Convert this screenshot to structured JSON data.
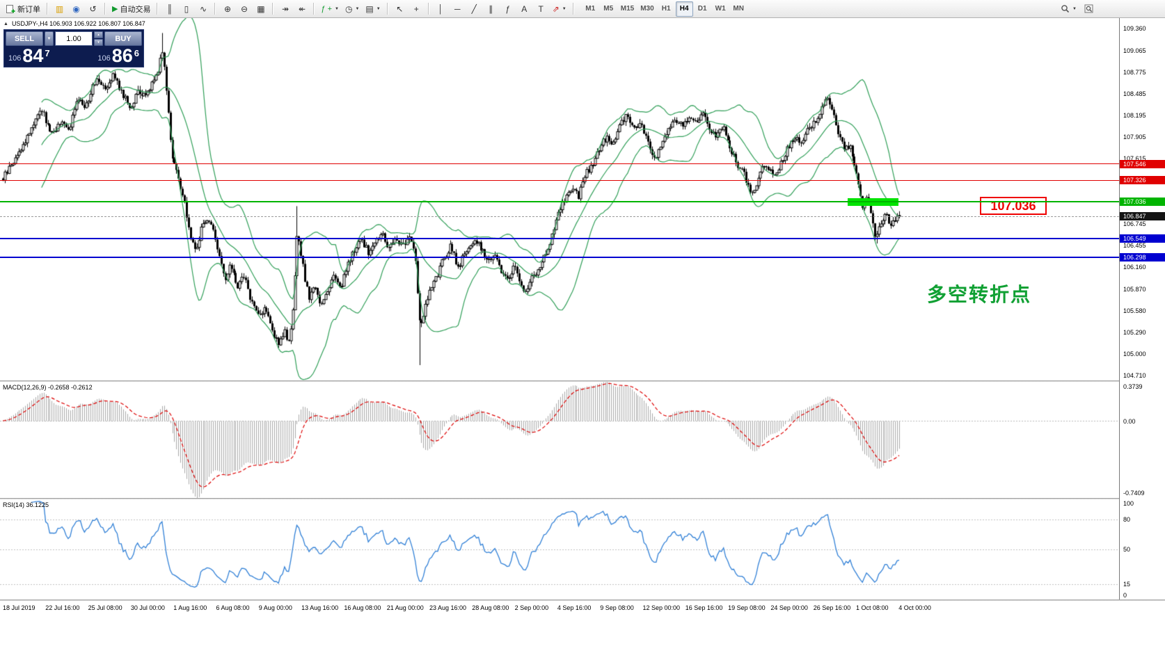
{
  "toolbar": {
    "new_order_label": "新订单",
    "autotrading_label": "自动交易",
    "timeframes": [
      "M1",
      "M5",
      "M15",
      "M30",
      "H1",
      "H4",
      "D1",
      "W1",
      "MN"
    ],
    "active_timeframe": "H4",
    "icons": {
      "charts": "▥",
      "profile": "◉",
      "refresh": "↺",
      "play": "▶",
      "bar_chart": "║",
      "candle_chart": "▯",
      "line_chart": "∿",
      "zoom_in": "⊕",
      "zoom_out": "⊖",
      "tile_windows": "▦",
      "auto_scroll": "↠",
      "chart_shift": "↞",
      "indicators": "ƒ",
      "plus": "+",
      "periods": "◷",
      "template": "▤",
      "cursor": "↖",
      "crosshair": "+",
      "vline": "│",
      "hline": "─",
      "trendline": "╱",
      "channel": "∥",
      "fibonacci": "ƒ",
      "text": "A",
      "text_label": "T",
      "arrows": "⇗",
      "caret": "▼",
      "spin_up": "▴",
      "spin_down": "▾",
      "collapse": "▲"
    }
  },
  "trade_panel": {
    "sell_label": "SELL",
    "buy_label": "BUY",
    "volume": "1.00",
    "sell_prefix": "106",
    "sell_big": "84",
    "sell_sup": "7",
    "buy_prefix": "106",
    "buy_big": "86",
    "buy_sup": "6"
  },
  "chart_data": {
    "type": "candlestick",
    "symbol": "USDJPY-",
    "period": "H4",
    "quote_line": "USDJPY-,H4  106.903 106.922 106.807 106.847",
    "price_top": 109.5,
    "price_bottom": 104.645,
    "price_axis_labels": [
      "109.360",
      "109.065",
      "108.775",
      "108.485",
      "108.195",
      "107.905",
      "107.615",
      "106.745",
      "106.455",
      "106.160",
      "105.870",
      "105.580",
      "105.290",
      "105.000",
      "104.710"
    ],
    "hlines": [
      {
        "price": 107.546,
        "label": "107.546",
        "color": "#e00000",
        "thickness": 1
      },
      {
        "price": 107.326,
        "label": "107.326",
        "color": "#e00000",
        "thickness": 1
      },
      {
        "price": 107.036,
        "label": "107.036",
        "color": "#00b400",
        "thickness": 2
      },
      {
        "price": 106.549,
        "label": "106.549",
        "color": "#0000d0",
        "thickness": 2
      },
      {
        "price": 106.298,
        "label": "106.298",
        "color": "#0000d0",
        "thickness": 2
      }
    ],
    "bid": {
      "price": 106.847,
      "label": "106.847",
      "color": "#141414"
    },
    "bollinger": {
      "period": 20,
      "deviation": 2,
      "color": "#2f9e57"
    },
    "candle_count": 440,
    "path_anchors": [
      [
        0.0,
        107.35
      ],
      [
        0.01,
        107.55
      ],
      [
        0.023,
        107.8
      ],
      [
        0.042,
        108.3
      ],
      [
        0.054,
        107.95
      ],
      [
        0.065,
        108.1
      ],
      [
        0.073,
        108.0
      ],
      [
        0.085,
        108.45
      ],
      [
        0.092,
        108.3
      ],
      [
        0.104,
        108.7
      ],
      [
        0.115,
        108.58
      ],
      [
        0.123,
        108.75
      ],
      [
        0.135,
        108.45
      ],
      [
        0.142,
        108.3
      ],
      [
        0.15,
        108.5
      ],
      [
        0.158,
        108.45
      ],
      [
        0.165,
        108.6
      ],
      [
        0.173,
        108.8
      ],
      [
        0.178,
        109.1
      ],
      [
        0.183,
        108.45
      ],
      [
        0.188,
        107.7
      ],
      [
        0.194,
        107.45
      ],
      [
        0.198,
        107.2
      ],
      [
        0.204,
        106.95
      ],
      [
        0.209,
        106.55
      ],
      [
        0.215,
        106.4
      ],
      [
        0.223,
        106.75
      ],
      [
        0.231,
        106.8
      ],
      [
        0.237,
        106.55
      ],
      [
        0.242,
        106.3
      ],
      [
        0.248,
        105.95
      ],
      [
        0.254,
        106.2
      ],
      [
        0.262,
        105.9
      ],
      [
        0.269,
        106.05
      ],
      [
        0.277,
        105.7
      ],
      [
        0.286,
        105.5
      ],
      [
        0.292,
        105.65
      ],
      [
        0.3,
        105.3
      ],
      [
        0.308,
        105.15
      ],
      [
        0.314,
        105.3
      ],
      [
        0.318,
        105.08
      ],
      [
        0.323,
        105.45
      ],
      [
        0.328,
        106.55
      ],
      [
        0.332,
        106.4
      ],
      [
        0.337,
        106.0
      ],
      [
        0.342,
        105.75
      ],
      [
        0.348,
        105.9
      ],
      [
        0.354,
        105.65
      ],
      [
        0.362,
        105.85
      ],
      [
        0.369,
        106.05
      ],
      [
        0.377,
        105.9
      ],
      [
        0.385,
        106.2
      ],
      [
        0.392,
        106.4
      ],
      [
        0.4,
        106.55
      ],
      [
        0.408,
        106.35
      ],
      [
        0.415,
        106.5
      ],
      [
        0.423,
        106.6
      ],
      [
        0.431,
        106.4
      ],
      [
        0.438,
        106.55
      ],
      [
        0.446,
        106.45
      ],
      [
        0.454,
        106.6
      ],
      [
        0.46,
        106.3
      ],
      [
        0.465,
        105.35
      ],
      [
        0.471,
        105.6
      ],
      [
        0.477,
        105.85
      ],
      [
        0.485,
        106.05
      ],
      [
        0.492,
        106.3
      ],
      [
        0.5,
        106.45
      ],
      [
        0.508,
        106.15
      ],
      [
        0.515,
        106.35
      ],
      [
        0.523,
        106.5
      ],
      [
        0.532,
        106.45
      ],
      [
        0.54,
        106.25
      ],
      [
        0.548,
        106.35
      ],
      [
        0.555,
        106.1
      ],
      [
        0.563,
        106.0
      ],
      [
        0.571,
        106.2
      ],
      [
        0.577,
        105.95
      ],
      [
        0.583,
        105.8
      ],
      [
        0.589,
        106.0
      ],
      [
        0.596,
        106.1
      ],
      [
        0.604,
        106.3
      ],
      [
        0.612,
        106.55
      ],
      [
        0.619,
        106.9
      ],
      [
        0.627,
        107.05
      ],
      [
        0.635,
        107.25
      ],
      [
        0.642,
        107.1
      ],
      [
        0.65,
        107.4
      ],
      [
        0.658,
        107.55
      ],
      [
        0.665,
        107.75
      ],
      [
        0.673,
        107.9
      ],
      [
        0.681,
        107.8
      ],
      [
        0.688,
        108.05
      ],
      [
        0.696,
        108.2
      ],
      [
        0.704,
        108.0
      ],
      [
        0.712,
        108.1
      ],
      [
        0.719,
        107.85
      ],
      [
        0.727,
        107.6
      ],
      [
        0.735,
        107.8
      ],
      [
        0.742,
        108.0
      ],
      [
        0.75,
        108.15
      ],
      [
        0.758,
        108.05
      ],
      [
        0.765,
        108.2
      ],
      [
        0.773,
        108.1
      ],
      [
        0.781,
        108.25
      ],
      [
        0.788,
        108.0
      ],
      [
        0.796,
        107.9
      ],
      [
        0.804,
        108.05
      ],
      [
        0.812,
        107.75
      ],
      [
        0.819,
        107.55
      ],
      [
        0.827,
        107.4
      ],
      [
        0.835,
        107.1
      ],
      [
        0.84,
        107.25
      ],
      [
        0.846,
        107.45
      ],
      [
        0.852,
        107.55
      ],
      [
        0.86,
        107.35
      ],
      [
        0.868,
        107.55
      ],
      [
        0.875,
        107.75
      ],
      [
        0.883,
        107.9
      ],
      [
        0.891,
        107.8
      ],
      [
        0.898,
        108.0
      ],
      [
        0.906,
        108.1
      ],
      [
        0.914,
        108.3
      ],
      [
        0.92,
        108.45
      ],
      [
        0.926,
        108.25
      ],
      [
        0.932,
        107.95
      ],
      [
        0.938,
        107.75
      ],
      [
        0.945,
        107.8
      ],
      [
        0.951,
        107.5
      ],
      [
        0.956,
        107.15
      ],
      [
        0.96,
        106.95
      ],
      [
        0.965,
        107.1
      ],
      [
        0.969,
        106.8
      ],
      [
        0.974,
        106.55
      ],
      [
        0.978,
        106.75
      ],
      [
        0.985,
        106.9
      ],
      [
        0.989,
        106.7
      ],
      [
        1.0,
        106.85
      ]
    ],
    "special_wicks": [
      [
        0.178,
        "h",
        109.3
      ],
      [
        0.328,
        "h",
        106.98
      ],
      [
        0.465,
        "l",
        104.85
      ],
      [
        0.974,
        "l",
        106.48
      ]
    ],
    "time_labels": [
      "18 Jul 2019",
      "22 Jul 16:00",
      "25 Jul 08:00",
      "30 Jul 00:00",
      "1 Aug 16:00",
      "6 Aug 08:00",
      "9 Aug 00:00",
      "13 Aug 16:00",
      "16 Aug 08:00",
      "21 Aug 00:00",
      "23 Aug 16:00",
      "28 Aug 08:00",
      "2 Sep 00:00",
      "4 Sep 16:00",
      "9 Sep 08:00",
      "12 Sep 00:00",
      "16 Sep 16:00",
      "19 Sep 08:00",
      "24 Sep 00:00",
      "26 Sep 16:00",
      "1 Oct 08:00",
      "4 Oct 00:00"
    ],
    "macd": {
      "title": "MACD(12,26,9) -0.2658 -0.2612",
      "axis_max": "0.3739",
      "axis_zero": "0.00",
      "axis_min": "-0.7409",
      "axis_max_v": 0.3739,
      "axis_min_v": -0.7409,
      "hist_color": "#a8a8a8",
      "signal_color": "#dd0000"
    },
    "rsi": {
      "title": "RSI(14) 36.1225",
      "axis_labels": [
        "100",
        "80",
        "50",
        "15",
        "0"
      ],
      "levels": [
        80,
        50,
        15
      ],
      "color": "#2f7fd6"
    },
    "annotations": {
      "price_box_label": "107.036",
      "note_text": "多空转折点",
      "note_color": "#10a033",
      "highlight_color": "#00e300"
    }
  }
}
